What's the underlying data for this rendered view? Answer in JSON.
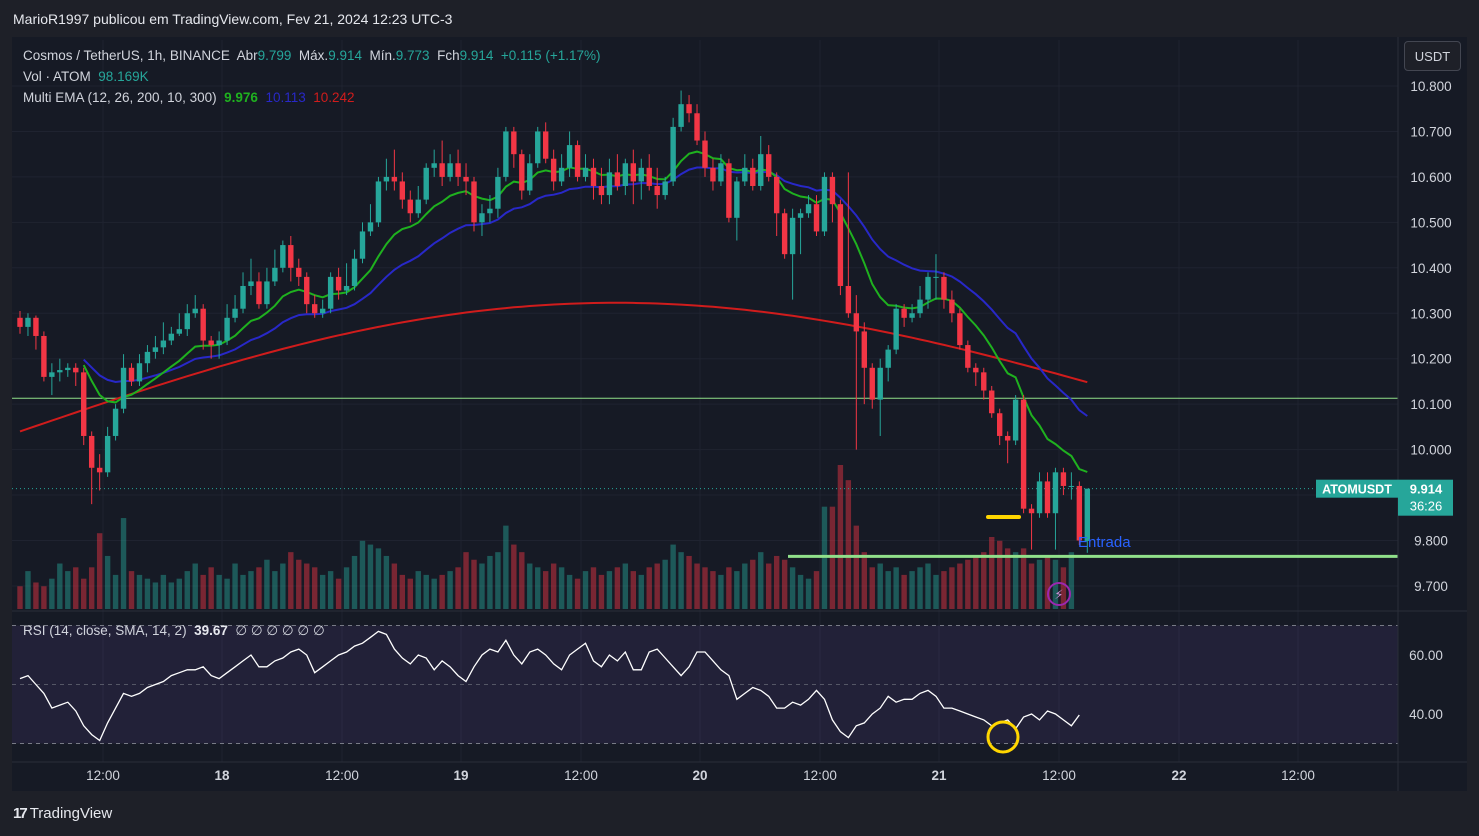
{
  "header": {
    "publisher": "MarioR1997 publicou em TradingView.com, Fev 21, 2024 12:23 UTC-3"
  },
  "legend": {
    "symbol": "Cosmos / TetherUS, 1h, BINANCE",
    "open_label": "Abr",
    "open": "9.799",
    "high_label": "Máx.",
    "high": "9.914",
    "low_label": "Mín.",
    "low": "9.773",
    "close_label": "Fch",
    "close": "9.914",
    "change": "+0.115 (+1.17%)",
    "volume_label": "Vol · ATOM",
    "volume": "98.169K",
    "ema_label": "Multi EMA (12, 26, 200, 10, 300)",
    "ema_values": [
      "9.976",
      "10.113",
      "10.242"
    ]
  },
  "rsi_legend": {
    "label": "RSI (14, close, SMA, 14, 2)",
    "value": "39.67",
    "extras": "∅ ∅ ∅ ∅ ∅ ∅"
  },
  "currency_button": "USDT",
  "price_tag": {
    "symbol": "ATOMUSDT",
    "price": "9.914",
    "countdown": "36:26"
  },
  "annotation": {
    "text": "Entrada"
  },
  "footer": {
    "brand": "TradingView"
  },
  "colors": {
    "up": "#26a69a",
    "down": "#f23645",
    "ema_fast": "#1fb11f",
    "ema_mid": "#2828c8",
    "ema_slow": "#d01c1c",
    "level_line": "#90e08a",
    "rsi": "#ffffff"
  },
  "chart_data": {
    "type": "candlestick",
    "timeframe": "1h",
    "y_axis": {
      "ticks": [
        "10.800",
        "10.700",
        "10.600",
        "10.500",
        "10.400",
        "10.300",
        "10.200",
        "10.100",
        "10.000",
        "9.900",
        "9.800",
        "9.700"
      ],
      "range": [
        9.655,
        10.85
      ]
    },
    "x_axis": {
      "ticks": [
        "12:00",
        "18",
        "12:00",
        "19",
        "12:00",
        "20",
        "12:00",
        "21",
        "12:00",
        "22",
        "12:00"
      ]
    },
    "horizontal_levels": [
      10.113,
      9.765
    ],
    "candles": [
      {
        "o": 10.29,
        "c": 10.27,
        "h": 10.305,
        "l": 10.255
      },
      {
        "o": 10.27,
        "c": 10.29,
        "h": 10.3,
        "l": 10.25
      },
      {
        "o": 10.29,
        "c": 10.25,
        "h": 10.295,
        "l": 10.22
      },
      {
        "o": 10.25,
        "c": 10.16,
        "h": 10.26,
        "l": 10.15
      },
      {
        "o": 10.16,
        "c": 10.17,
        "h": 10.19,
        "l": 10.12
      },
      {
        "o": 10.17,
        "c": 10.175,
        "h": 10.2,
        "l": 10.15
      },
      {
        "o": 10.175,
        "c": 10.18,
        "h": 10.19,
        "l": 10.16
      },
      {
        "o": 10.18,
        "c": 10.17,
        "h": 10.19,
        "l": 10.14
      },
      {
        "o": 10.17,
        "c": 10.03,
        "h": 10.18,
        "l": 10.01
      },
      {
        "o": 10.03,
        "c": 9.96,
        "h": 10.04,
        "l": 9.88
      },
      {
        "o": 9.96,
        "c": 9.95,
        "h": 9.99,
        "l": 9.91
      },
      {
        "o": 9.95,
        "c": 10.03,
        "h": 10.05,
        "l": 9.94
      },
      {
        "o": 10.03,
        "c": 10.09,
        "h": 10.1,
        "l": 10.02
      },
      {
        "o": 10.09,
        "c": 10.18,
        "h": 10.21,
        "l": 10.08
      },
      {
        "o": 10.18,
        "c": 10.15,
        "h": 10.19,
        "l": 10.14
      },
      {
        "o": 10.15,
        "c": 10.19,
        "h": 10.21,
        "l": 10.14
      },
      {
        "o": 10.19,
        "c": 10.215,
        "h": 10.23,
        "l": 10.17
      },
      {
        "o": 10.215,
        "c": 10.225,
        "h": 10.25,
        "l": 10.2
      },
      {
        "o": 10.225,
        "c": 10.24,
        "h": 10.28,
        "l": 10.21
      },
      {
        "o": 10.24,
        "c": 10.255,
        "h": 10.27,
        "l": 10.23
      },
      {
        "o": 10.255,
        "c": 10.265,
        "h": 10.3,
        "l": 10.25
      },
      {
        "o": 10.265,
        "c": 10.3,
        "h": 10.32,
        "l": 10.25
      },
      {
        "o": 10.3,
        "c": 10.31,
        "h": 10.34,
        "l": 10.29
      },
      {
        "o": 10.31,
        "c": 10.24,
        "h": 10.32,
        "l": 10.22
      },
      {
        "o": 10.24,
        "c": 10.23,
        "h": 10.25,
        "l": 10.2
      },
      {
        "o": 10.23,
        "c": 10.24,
        "h": 10.26,
        "l": 10.2
      },
      {
        "o": 10.24,
        "c": 10.29,
        "h": 10.32,
        "l": 10.23
      },
      {
        "o": 10.29,
        "c": 10.31,
        "h": 10.34,
        "l": 10.28
      },
      {
        "o": 10.31,
        "c": 10.36,
        "h": 10.39,
        "l": 10.3
      },
      {
        "o": 10.36,
        "c": 10.37,
        "h": 10.42,
        "l": 10.34
      },
      {
        "o": 10.37,
        "c": 10.32,
        "h": 10.39,
        "l": 10.31
      },
      {
        "o": 10.32,
        "c": 10.37,
        "h": 10.4,
        "l": 10.31
      },
      {
        "o": 10.37,
        "c": 10.4,
        "h": 10.44,
        "l": 10.36
      },
      {
        "o": 10.4,
        "c": 10.45,
        "h": 10.46,
        "l": 10.39
      },
      {
        "o": 10.45,
        "c": 10.4,
        "h": 10.47,
        "l": 10.37
      },
      {
        "o": 10.4,
        "c": 10.38,
        "h": 10.42,
        "l": 10.36
      },
      {
        "o": 10.38,
        "c": 10.32,
        "h": 10.39,
        "l": 10.3
      },
      {
        "o": 10.32,
        "c": 10.3,
        "h": 10.34,
        "l": 10.29
      },
      {
        "o": 10.3,
        "c": 10.31,
        "h": 10.33,
        "l": 10.29
      },
      {
        "o": 10.31,
        "c": 10.38,
        "h": 10.39,
        "l": 10.3
      },
      {
        "o": 10.38,
        "c": 10.35,
        "h": 10.4,
        "l": 10.33
      },
      {
        "o": 10.35,
        "c": 10.36,
        "h": 10.41,
        "l": 10.34
      },
      {
        "o": 10.36,
        "c": 10.42,
        "h": 10.44,
        "l": 10.35
      },
      {
        "o": 10.42,
        "c": 10.48,
        "h": 10.5,
        "l": 10.41
      },
      {
        "o": 10.48,
        "c": 10.5,
        "h": 10.54,
        "l": 10.47
      },
      {
        "o": 10.5,
        "c": 10.59,
        "h": 10.6,
        "l": 10.49
      },
      {
        "o": 10.59,
        "c": 10.6,
        "h": 10.64,
        "l": 10.57
      },
      {
        "o": 10.6,
        "c": 10.59,
        "h": 10.66,
        "l": 10.57
      },
      {
        "o": 10.59,
        "c": 10.55,
        "h": 10.61,
        "l": 10.53
      },
      {
        "o": 10.55,
        "c": 10.52,
        "h": 10.57,
        "l": 10.5
      },
      {
        "o": 10.52,
        "c": 10.55,
        "h": 10.58,
        "l": 10.51
      },
      {
        "o": 10.55,
        "c": 10.62,
        "h": 10.63,
        "l": 10.54
      },
      {
        "o": 10.62,
        "c": 10.63,
        "h": 10.66,
        "l": 10.6
      },
      {
        "o": 10.63,
        "c": 10.6,
        "h": 10.68,
        "l": 10.58
      },
      {
        "o": 10.6,
        "c": 10.63,
        "h": 10.65,
        "l": 10.59
      },
      {
        "o": 10.63,
        "c": 10.6,
        "h": 10.66,
        "l": 10.58
      },
      {
        "o": 10.6,
        "c": 10.59,
        "h": 10.63,
        "l": 10.56
      },
      {
        "o": 10.59,
        "c": 10.5,
        "h": 10.6,
        "l": 10.48
      },
      {
        "o": 10.5,
        "c": 10.52,
        "h": 10.54,
        "l": 10.47
      },
      {
        "o": 10.52,
        "c": 10.53,
        "h": 10.56,
        "l": 10.5
      },
      {
        "o": 10.53,
        "c": 10.6,
        "h": 10.62,
        "l": 10.51
      },
      {
        "o": 10.6,
        "c": 10.7,
        "h": 10.71,
        "l": 10.59
      },
      {
        "o": 10.7,
        "c": 10.65,
        "h": 10.71,
        "l": 10.62
      },
      {
        "o": 10.65,
        "c": 10.57,
        "h": 10.66,
        "l": 10.55
      },
      {
        "o": 10.57,
        "c": 10.63,
        "h": 10.65,
        "l": 10.56
      },
      {
        "o": 10.63,
        "c": 10.7,
        "h": 10.71,
        "l": 10.62
      },
      {
        "o": 10.7,
        "c": 10.64,
        "h": 10.72,
        "l": 10.63
      },
      {
        "o": 10.64,
        "c": 10.59,
        "h": 10.66,
        "l": 10.57
      },
      {
        "o": 10.59,
        "c": 10.62,
        "h": 10.65,
        "l": 10.58
      },
      {
        "o": 10.62,
        "c": 10.67,
        "h": 10.7,
        "l": 10.6
      },
      {
        "o": 10.67,
        "c": 10.6,
        "h": 10.68,
        "l": 10.59
      },
      {
        "o": 10.6,
        "c": 10.62,
        "h": 10.65,
        "l": 10.59
      },
      {
        "o": 10.62,
        "c": 10.58,
        "h": 10.64,
        "l": 10.55
      },
      {
        "o": 10.58,
        "c": 10.56,
        "h": 10.62,
        "l": 10.54
      },
      {
        "o": 10.56,
        "c": 10.61,
        "h": 10.64,
        "l": 10.54
      },
      {
        "o": 10.61,
        "c": 10.58,
        "h": 10.65,
        "l": 10.57
      },
      {
        "o": 10.58,
        "c": 10.63,
        "h": 10.64,
        "l": 10.56
      },
      {
        "o": 10.63,
        "c": 10.59,
        "h": 10.66,
        "l": 10.54
      },
      {
        "o": 10.59,
        "c": 10.62,
        "h": 10.64,
        "l": 10.55
      },
      {
        "o": 10.62,
        "c": 10.58,
        "h": 10.65,
        "l": 10.57
      },
      {
        "o": 10.58,
        "c": 10.56,
        "h": 10.62,
        "l": 10.53
      },
      {
        "o": 10.56,
        "c": 10.59,
        "h": 10.6,
        "l": 10.55
      },
      {
        "o": 10.59,
        "c": 10.71,
        "h": 10.73,
        "l": 10.58
      },
      {
        "o": 10.71,
        "c": 10.76,
        "h": 10.79,
        "l": 10.7
      },
      {
        "o": 10.76,
        "c": 10.74,
        "h": 10.78,
        "l": 10.72
      },
      {
        "o": 10.74,
        "c": 10.68,
        "h": 10.76,
        "l": 10.67
      },
      {
        "o": 10.68,
        "c": 10.62,
        "h": 10.7,
        "l": 10.6
      },
      {
        "o": 10.62,
        "c": 10.59,
        "h": 10.64,
        "l": 10.57
      },
      {
        "o": 10.59,
        "c": 10.63,
        "h": 10.65,
        "l": 10.58
      },
      {
        "o": 10.63,
        "c": 10.51,
        "h": 10.64,
        "l": 10.5
      },
      {
        "o": 10.51,
        "c": 10.59,
        "h": 10.6,
        "l": 10.46
      },
      {
        "o": 10.59,
        "c": 10.62,
        "h": 10.65,
        "l": 10.58
      },
      {
        "o": 10.62,
        "c": 10.58,
        "h": 10.64,
        "l": 10.57
      },
      {
        "o": 10.58,
        "c": 10.65,
        "h": 10.69,
        "l": 10.57
      },
      {
        "o": 10.65,
        "c": 10.6,
        "h": 10.67,
        "l": 10.59
      },
      {
        "o": 10.6,
        "c": 10.52,
        "h": 10.61,
        "l": 10.47
      },
      {
        "o": 10.52,
        "c": 10.43,
        "h": 10.53,
        "l": 10.42
      },
      {
        "o": 10.43,
        "c": 10.51,
        "h": 10.53,
        "l": 10.33
      },
      {
        "o": 10.51,
        "c": 10.52,
        "h": 10.53,
        "l": 10.43
      },
      {
        "o": 10.52,
        "c": 10.54,
        "h": 10.56,
        "l": 10.51
      },
      {
        "o": 10.54,
        "c": 10.48,
        "h": 10.56,
        "l": 10.47
      },
      {
        "o": 10.48,
        "c": 10.6,
        "h": 10.61,
        "l": 10.47
      },
      {
        "o": 10.6,
        "c": 10.54,
        "h": 10.61,
        "l": 10.5
      },
      {
        "o": 10.54,
        "c": 10.36,
        "h": 10.55,
        "l": 10.34
      },
      {
        "o": 10.36,
        "c": 10.3,
        "h": 10.61,
        "l": 10.29
      },
      {
        "o": 10.3,
        "c": 10.26,
        "h": 10.34,
        "l": 10.0
      },
      {
        "o": 10.26,
        "c": 10.18,
        "h": 10.28,
        "l": 10.1
      },
      {
        "o": 10.18,
        "c": 10.11,
        "h": 10.19,
        "l": 10.09
      },
      {
        "o": 10.11,
        "c": 10.18,
        "h": 10.2,
        "l": 10.03
      },
      {
        "o": 10.18,
        "c": 10.22,
        "h": 10.23,
        "l": 10.15
      },
      {
        "o": 10.22,
        "c": 10.31,
        "h": 10.32,
        "l": 10.21
      },
      {
        "o": 10.31,
        "c": 10.29,
        "h": 10.32,
        "l": 10.27
      },
      {
        "o": 10.29,
        "c": 10.3,
        "h": 10.32,
        "l": 10.28
      },
      {
        "o": 10.3,
        "c": 10.33,
        "h": 10.36,
        "l": 10.29
      },
      {
        "o": 10.33,
        "c": 10.38,
        "h": 10.39,
        "l": 10.31
      },
      {
        "o": 10.38,
        "c": 10.38,
        "h": 10.43,
        "l": 10.33
      },
      {
        "o": 10.38,
        "c": 10.33,
        "h": 10.39,
        "l": 10.31
      },
      {
        "o": 10.33,
        "c": 10.3,
        "h": 10.35,
        "l": 10.28
      },
      {
        "o": 10.3,
        "c": 10.23,
        "h": 10.31,
        "l": 10.22
      },
      {
        "o": 10.23,
        "c": 10.18,
        "h": 10.24,
        "l": 10.17
      },
      {
        "o": 10.18,
        "c": 10.17,
        "h": 10.19,
        "l": 10.14
      },
      {
        "o": 10.17,
        "c": 10.13,
        "h": 10.18,
        "l": 10.11
      },
      {
        "o": 10.13,
        "c": 10.08,
        "h": 10.14,
        "l": 10.07
      },
      {
        "o": 10.08,
        "c": 10.03,
        "h": 10.09,
        "l": 10.01
      },
      {
        "o": 10.03,
        "c": 10.02,
        "h": 10.04,
        "l": 9.97
      },
      {
        "o": 10.02,
        "c": 10.11,
        "h": 10.12,
        "l": 10.01
      },
      {
        "o": 10.11,
        "c": 9.87,
        "h": 10.12,
        "l": 9.86
      },
      {
        "o": 9.87,
        "c": 9.86,
        "h": 9.88,
        "l": 9.78
      },
      {
        "o": 9.86,
        "c": 9.93,
        "h": 9.95,
        "l": 9.85
      },
      {
        "o": 9.93,
        "c": 9.86,
        "h": 9.95,
        "l": 9.85
      },
      {
        "o": 9.86,
        "c": 9.95,
        "h": 9.96,
        "l": 9.78
      },
      {
        "o": 9.95,
        "c": 9.92,
        "h": 9.96,
        "l": 9.9
      },
      {
        "o": 9.92,
        "c": 9.92,
        "h": 9.95,
        "l": 9.89
      },
      {
        "o": 9.92,
        "c": 9.8,
        "h": 9.93,
        "l": 9.79
      },
      {
        "o": 9.799,
        "c": 9.914,
        "h": 9.914,
        "l": 9.773
      }
    ],
    "volume_rel": [
      0.3,
      0.5,
      0.35,
      0.3,
      0.4,
      0.6,
      0.5,
      0.55,
      0.4,
      0.55,
      1,
      0.7,
      0.45,
      1.2,
      0.5,
      0.45,
      0.4,
      0.35,
      0.45,
      0.35,
      0.4,
      0.5,
      0.6,
      0.45,
      0.55,
      0.45,
      0.4,
      0.6,
      0.45,
      0.5,
      0.55,
      0.65,
      0.5,
      0.6,
      0.75,
      0.65,
      0.6,
      0.55,
      0.45,
      0.5,
      0.4,
      0.55,
      0.7,
      0.9,
      0.85,
      0.8,
      0.7,
      0.6,
      0.45,
      0.4,
      0.5,
      0.45,
      0.4,
      0.45,
      0.5,
      0.55,
      0.75,
      0.65,
      0.6,
      0.7,
      0.75,
      1.1,
      0.85,
      0.75,
      0.6,
      0.55,
      0.5,
      0.6,
      0.55,
      0.45,
      0.4,
      0.5,
      0.55,
      0.45,
      0.5,
      0.55,
      0.6,
      0.5,
      0.45,
      0.55,
      0.6,
      0.65,
      0.85,
      0.75,
      0.7,
      0.6,
      0.55,
      0.5,
      0.45,
      0.55,
      0.5,
      0.6,
      0.65,
      0.75,
      0.6,
      0.7,
      0.65,
      0.55,
      0.45,
      0.4,
      0.5,
      1.35,
      1.35,
      1.9,
      1.7,
      1.1,
      0.75,
      0.55,
      0.6,
      0.5,
      0.55,
      0.45,
      0.5,
      0.55,
      0.6,
      0.45,
      0.5,
      0.55,
      0.6,
      0.65,
      0.7,
      0.75,
      0.95,
      0.9,
      0.8,
      0.75,
      0.8,
      0.6,
      0.65,
      0.7,
      0.65,
      0.55,
      0.75
    ]
  },
  "rsi_data": {
    "ticks": [
      "60.00",
      "40.00"
    ],
    "range": [
      28,
      72
    ],
    "values": [
      52,
      53,
      50,
      47,
      42,
      43,
      44,
      41,
      36,
      33,
      31,
      37,
      42,
      47,
      46,
      47,
      49,
      50,
      51,
      53,
      54,
      55,
      55,
      56,
      53,
      52,
      54,
      56,
      58,
      60,
      56,
      56,
      58,
      59,
      61,
      62,
      60,
      54,
      56,
      58,
      60,
      61,
      63,
      64,
      66,
      68,
      67,
      62,
      59,
      57,
      60,
      59,
      55,
      58,
      56,
      53,
      51,
      56,
      60,
      62,
      61,
      65,
      60,
      57,
      61,
      62,
      60,
      57,
      55,
      60,
      62,
      64,
      58,
      56,
      60,
      58,
      61,
      55,
      55,
      61,
      62,
      59,
      56,
      53,
      56,
      61,
      61,
      58,
      55,
      53,
      45,
      47,
      49,
      48,
      46,
      42,
      42,
      44,
      43,
      45,
      48,
      45,
      38,
      34,
      32,
      36,
      37,
      40,
      42,
      46,
      44,
      45,
      45,
      47,
      48,
      46,
      42,
      42,
      41,
      40,
      39,
      38,
      36,
      37,
      38,
      35,
      39,
      40,
      38,
      41,
      40,
      38,
      36,
      39.67
    ]
  }
}
